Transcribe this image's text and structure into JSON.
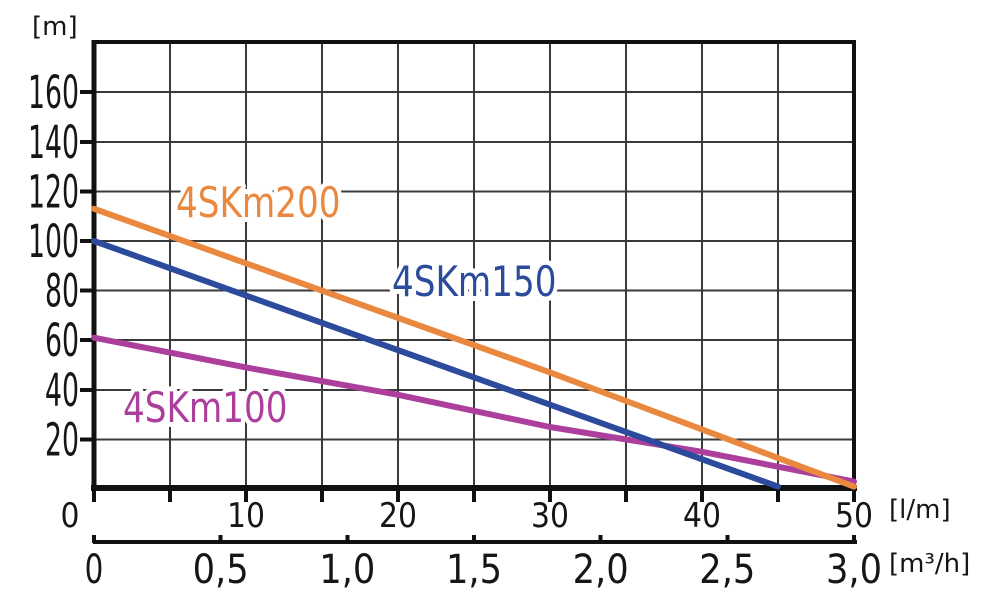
{
  "page": {
    "background": "#ffffff"
  },
  "colors": {
    "grid": "#3a3a3a",
    "axis": "#111111",
    "text": "#161616",
    "halo": "#ffffff"
  },
  "chart_data": {
    "type": "line",
    "title": "",
    "description": "Submersible pump performance curves: head [m] versus flow rate [l/m] and [m3/h]",
    "grid": "on",
    "legend": "inline-labels-on-curves",
    "y_axis": {
      "unit": "[m]",
      "min": 0,
      "max": 180,
      "tick_step": 20,
      "tick_values": [
        20,
        40,
        60,
        80,
        100,
        120,
        140,
        160
      ],
      "tick_labels": [
        "20",
        "40",
        "60",
        "80",
        "100",
        "120",
        "140",
        "160"
      ]
    },
    "x_axis": {
      "unit": "[l/m]",
      "min": 0,
      "max": 50,
      "major_tick_values": [
        0,
        10,
        20,
        30,
        40,
        50
      ],
      "major_tick_labels": [
        "0",
        "10",
        "20",
        "30",
        "40",
        "50"
      ],
      "minor_tick_step": 5,
      "gridline_step": 5
    },
    "x_axis_secondary": {
      "unit": "[m³/h]",
      "min": 0,
      "max": 3,
      "tick_values": [
        0,
        0.5,
        1,
        1.5,
        2,
        2.5,
        3
      ],
      "tick_labels": [
        "0",
        "0,5",
        "1,0",
        "1,5",
        "2,0",
        "2,5",
        "3,0"
      ]
    },
    "series": [
      {
        "name": "4SKm100",
        "color": "#AC3F9C",
        "points": [
          [
            0,
            61
          ],
          [
            10,
            49
          ],
          [
            20,
            38
          ],
          [
            30,
            25
          ],
          [
            40,
            15
          ],
          [
            50,
            3
          ]
        ]
      },
      {
        "name": "4SKm150",
        "color": "#2C4B9C",
        "points": [
          [
            0,
            100
          ],
          [
            10,
            78
          ],
          [
            20,
            56
          ],
          [
            30,
            34
          ],
          [
            40,
            12
          ],
          [
            45,
            1
          ]
        ]
      },
      {
        "name": "4SKm200",
        "color": "#E9883E",
        "points": [
          [
            0,
            113
          ],
          [
            10,
            91
          ],
          [
            20,
            69
          ],
          [
            30,
            47
          ],
          [
            40,
            24
          ],
          [
            50,
            1
          ]
        ]
      }
    ]
  }
}
